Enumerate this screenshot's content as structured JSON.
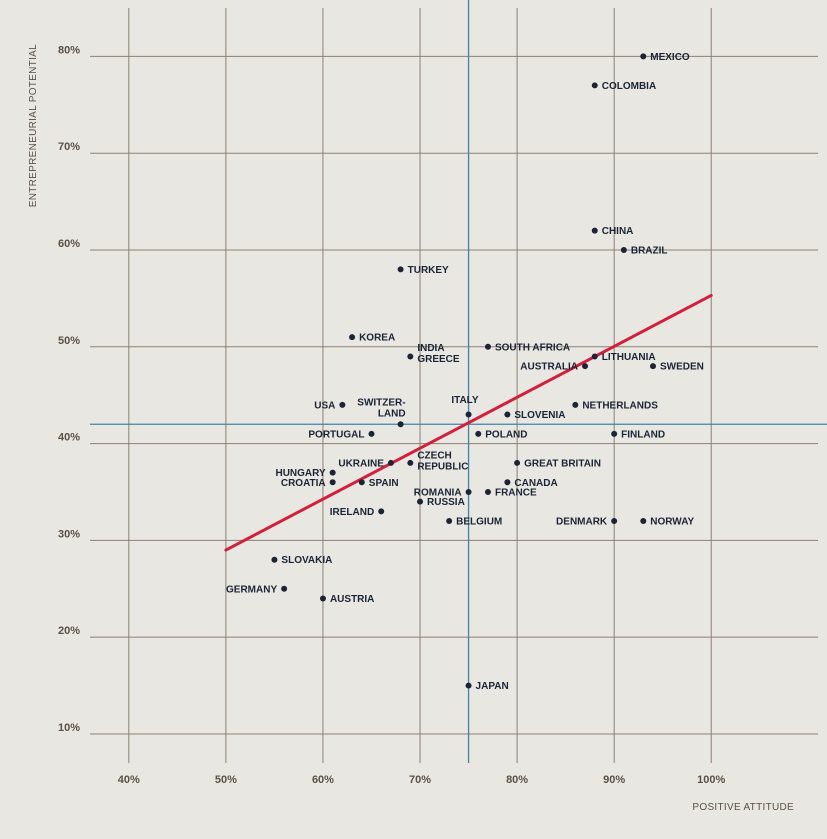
{
  "chart_data": {
    "type": "scatter",
    "title": "",
    "xlabel": "POSITIVE ATTITUDE",
    "ylabel": "ENTREPRENEURIAL POTENTIAL",
    "xlim": [
      36,
      111
    ],
    "ylim": [
      7,
      85
    ],
    "x_ticks": [
      40,
      50,
      60,
      70,
      80,
      90,
      100
    ],
    "x_tick_labels": [
      "40%",
      "50%",
      "60%",
      "70%",
      "80%",
      "90%",
      "100%"
    ],
    "y_ticks": [
      10,
      20,
      30,
      40,
      50,
      60,
      70,
      80
    ],
    "y_tick_labels": [
      "10%",
      "20%",
      "30%",
      "40%",
      "50%",
      "60%",
      "70%",
      "80%"
    ],
    "grid": true,
    "reference_lines": {
      "x": 75,
      "y": 42,
      "color": "#3d86a8"
    },
    "trend_line": {
      "x": [
        50,
        100
      ],
      "y": [
        29,
        55.3
      ],
      "color": "#d41f3a"
    },
    "point_color": "#1a2436",
    "points": [
      {
        "label": "MEXICO",
        "x": 93,
        "y": 80
      },
      {
        "label": "COLOMBIA",
        "x": 88,
        "y": 77
      },
      {
        "label": "CHINA",
        "x": 88,
        "y": 62
      },
      {
        "label": "BRAZIL",
        "x": 91,
        "y": 60
      },
      {
        "label": "TURKEY",
        "x": 68,
        "y": 58
      },
      {
        "label": "KOREA",
        "x": 63,
        "y": 51
      },
      {
        "label": "INDIA",
        "x": 69,
        "y": 49,
        "label2": "GREECE"
      },
      {
        "label": "SOUTH AFRICA",
        "x": 77,
        "y": 50
      },
      {
        "label": "LITHUANIA",
        "x": 88,
        "y": 49
      },
      {
        "label": "AUSTRALIA",
        "x": 87,
        "y": 48
      },
      {
        "label": "SWEDEN",
        "x": 94,
        "y": 48
      },
      {
        "label": "USA",
        "x": 62,
        "y": 44
      },
      {
        "label": "SWITZER-",
        "x": 68,
        "y": 42,
        "label2": "LAND"
      },
      {
        "label": "ITALY",
        "x": 75,
        "y": 43
      },
      {
        "label": "SLOVENIA",
        "x": 79,
        "y": 43
      },
      {
        "label": "NETHERLANDS",
        "x": 86,
        "y": 44
      },
      {
        "label": "PORTUGAL",
        "x": 65,
        "y": 41
      },
      {
        "label": "POLAND",
        "x": 76,
        "y": 41
      },
      {
        "label": "FINLAND",
        "x": 90,
        "y": 41
      },
      {
        "label": "UKRAINE",
        "x": 67,
        "y": 38
      },
      {
        "label": "CZECH",
        "x": 69,
        "y": 38,
        "label2": "REPUBLIC"
      },
      {
        "label": "GREAT BRITAIN",
        "x": 80,
        "y": 38
      },
      {
        "label": "HUNGARY",
        "x": 61,
        "y": 37
      },
      {
        "label": "CROATIA",
        "x": 61,
        "y": 36
      },
      {
        "label": "SPAIN",
        "x": 64,
        "y": 36
      },
      {
        "label": "CANADA",
        "x": 79,
        "y": 36
      },
      {
        "label": "ROMANIA",
        "x": 75,
        "y": 35
      },
      {
        "label": "FRANCE",
        "x": 77,
        "y": 35
      },
      {
        "label": "RUSSIA",
        "x": 70,
        "y": 34
      },
      {
        "label": "IRELAND",
        "x": 66,
        "y": 33
      },
      {
        "label": "BELGIUM",
        "x": 73,
        "y": 32
      },
      {
        "label": "DENMARK",
        "x": 90,
        "y": 32
      },
      {
        "label": "NORWAY",
        "x": 93,
        "y": 32
      },
      {
        "label": "SLOVAKIA",
        "x": 55,
        "y": 28
      },
      {
        "label": "GERMANY",
        "x": 56,
        "y": 25
      },
      {
        "label": "AUSTRIA",
        "x": 60,
        "y": 24
      },
      {
        "label": "JAPAN",
        "x": 75,
        "y": 15
      }
    ]
  }
}
